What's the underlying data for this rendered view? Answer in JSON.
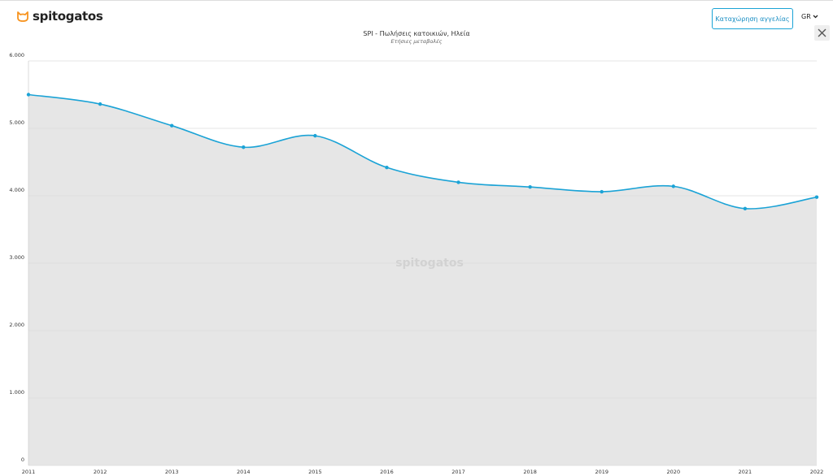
{
  "header": {
    "logo": "spitogatos",
    "button": "Καταχώρηση αγγελίας",
    "language": "GR"
  },
  "chart_data": {
    "type": "line",
    "title": "SPI - Πωλήσεις κατοικιών, Ηλεία",
    "subtitle": "Ετήσιες μεταβολές",
    "watermark": "spitogatos",
    "categories": [
      "2011",
      "2012",
      "2013",
      "2014",
      "2015",
      "2016",
      "2017",
      "2018",
      "2019",
      "2020",
      "2021",
      "2022"
    ],
    "series": [
      {
        "name": "Ηλεία",
        "color": "#1ba3d6",
        "values": [
          5500,
          5360,
          5040,
          4720,
          4890,
          4420,
          4200,
          4130,
          4060,
          4140,
          3810,
          3980
        ]
      }
    ],
    "area_color": "#e6e6e6",
    "ylim": [
      0,
      6000
    ],
    "yticks": [
      0,
      {
        "value": 1000,
        "label": "1.000"
      },
      {
        "value": 2000,
        "label": "2.000"
      },
      {
        "value": 3000,
        "label": "3.000"
      },
      {
        "value": 4000,
        "label": "4.000"
      },
      {
        "value": 5000,
        "label": "5.000"
      },
      {
        "value": 6000,
        "label": "6.000"
      }
    ],
    "grid": true
  }
}
